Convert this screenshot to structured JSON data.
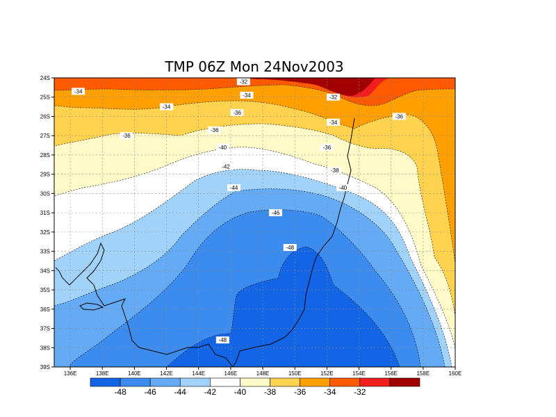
{
  "title": "TMP 06Z Mon 24Nov2003",
  "lat_ticks": [
    "24S",
    "25S",
    "26S",
    "27S",
    "28S",
    "29S",
    "30S",
    "31S",
    "32S",
    "33S",
    "34S",
    "35S",
    "36S",
    "37S",
    "38S",
    "39S"
  ],
  "lon_ticks": [
    "136E",
    "138E",
    "140E",
    "142E",
    "144E",
    "146E",
    "148E",
    "150E",
    "152E",
    "154E",
    "156E",
    "158E",
    "160E"
  ],
  "colorbar": {
    "colors": [
      "#1464e6",
      "#3c8cf0",
      "#64aaf5",
      "#a0d2fa",
      "#ffffff",
      "#fffac8",
      "#ffd250",
      "#ffa000",
      "#ff5a00",
      "#f01e1e",
      "#a00000"
    ],
    "labels": [
      "-48",
      "-46",
      "-44",
      "-42",
      "-40",
      "-38",
      "-36",
      "-34",
      "-32"
    ]
  },
  "contour_labels": [
    {
      "text": "-32",
      "lon": 146.8,
      "lat": 24.2
    },
    {
      "text": "-32",
      "lon": 152.4,
      "lat": 25.0
    },
    {
      "text": "-34",
      "lon": 136.5,
      "lat": 24.7
    },
    {
      "text": "-34",
      "lon": 147.0,
      "lat": 24.9
    },
    {
      "text": "-34",
      "lon": 142.0,
      "lat": 25.5
    },
    {
      "text": "-34",
      "lon": 152.4,
      "lat": 26.3
    },
    {
      "text": "-36",
      "lon": 139.5,
      "lat": 27.0
    },
    {
      "text": "-36",
      "lon": 146.4,
      "lat": 25.8
    },
    {
      "text": "-36",
      "lon": 145.0,
      "lat": 26.7
    },
    {
      "text": "-36",
      "lon": 152.0,
      "lat": 27.6
    },
    {
      "text": "-36",
      "lon": 156.5,
      "lat": 26.0
    },
    {
      "text": "-38",
      "lon": 152.5,
      "lat": 28.8
    },
    {
      "text": "-40",
      "lon": 145.5,
      "lat": 27.6
    },
    {
      "text": "-40",
      "lon": 153.0,
      "lat": 29.7
    },
    {
      "text": "-42",
      "lon": 145.7,
      "lat": 28.6
    },
    {
      "text": "-44",
      "lon": 146.2,
      "lat": 29.7
    },
    {
      "text": "-46",
      "lon": 148.8,
      "lat": 31.0
    },
    {
      "text": "-48",
      "lon": 149.7,
      "lat": 32.8
    },
    {
      "text": "-48",
      "lon": 145.5,
      "lat": 37.6
    }
  ]
}
